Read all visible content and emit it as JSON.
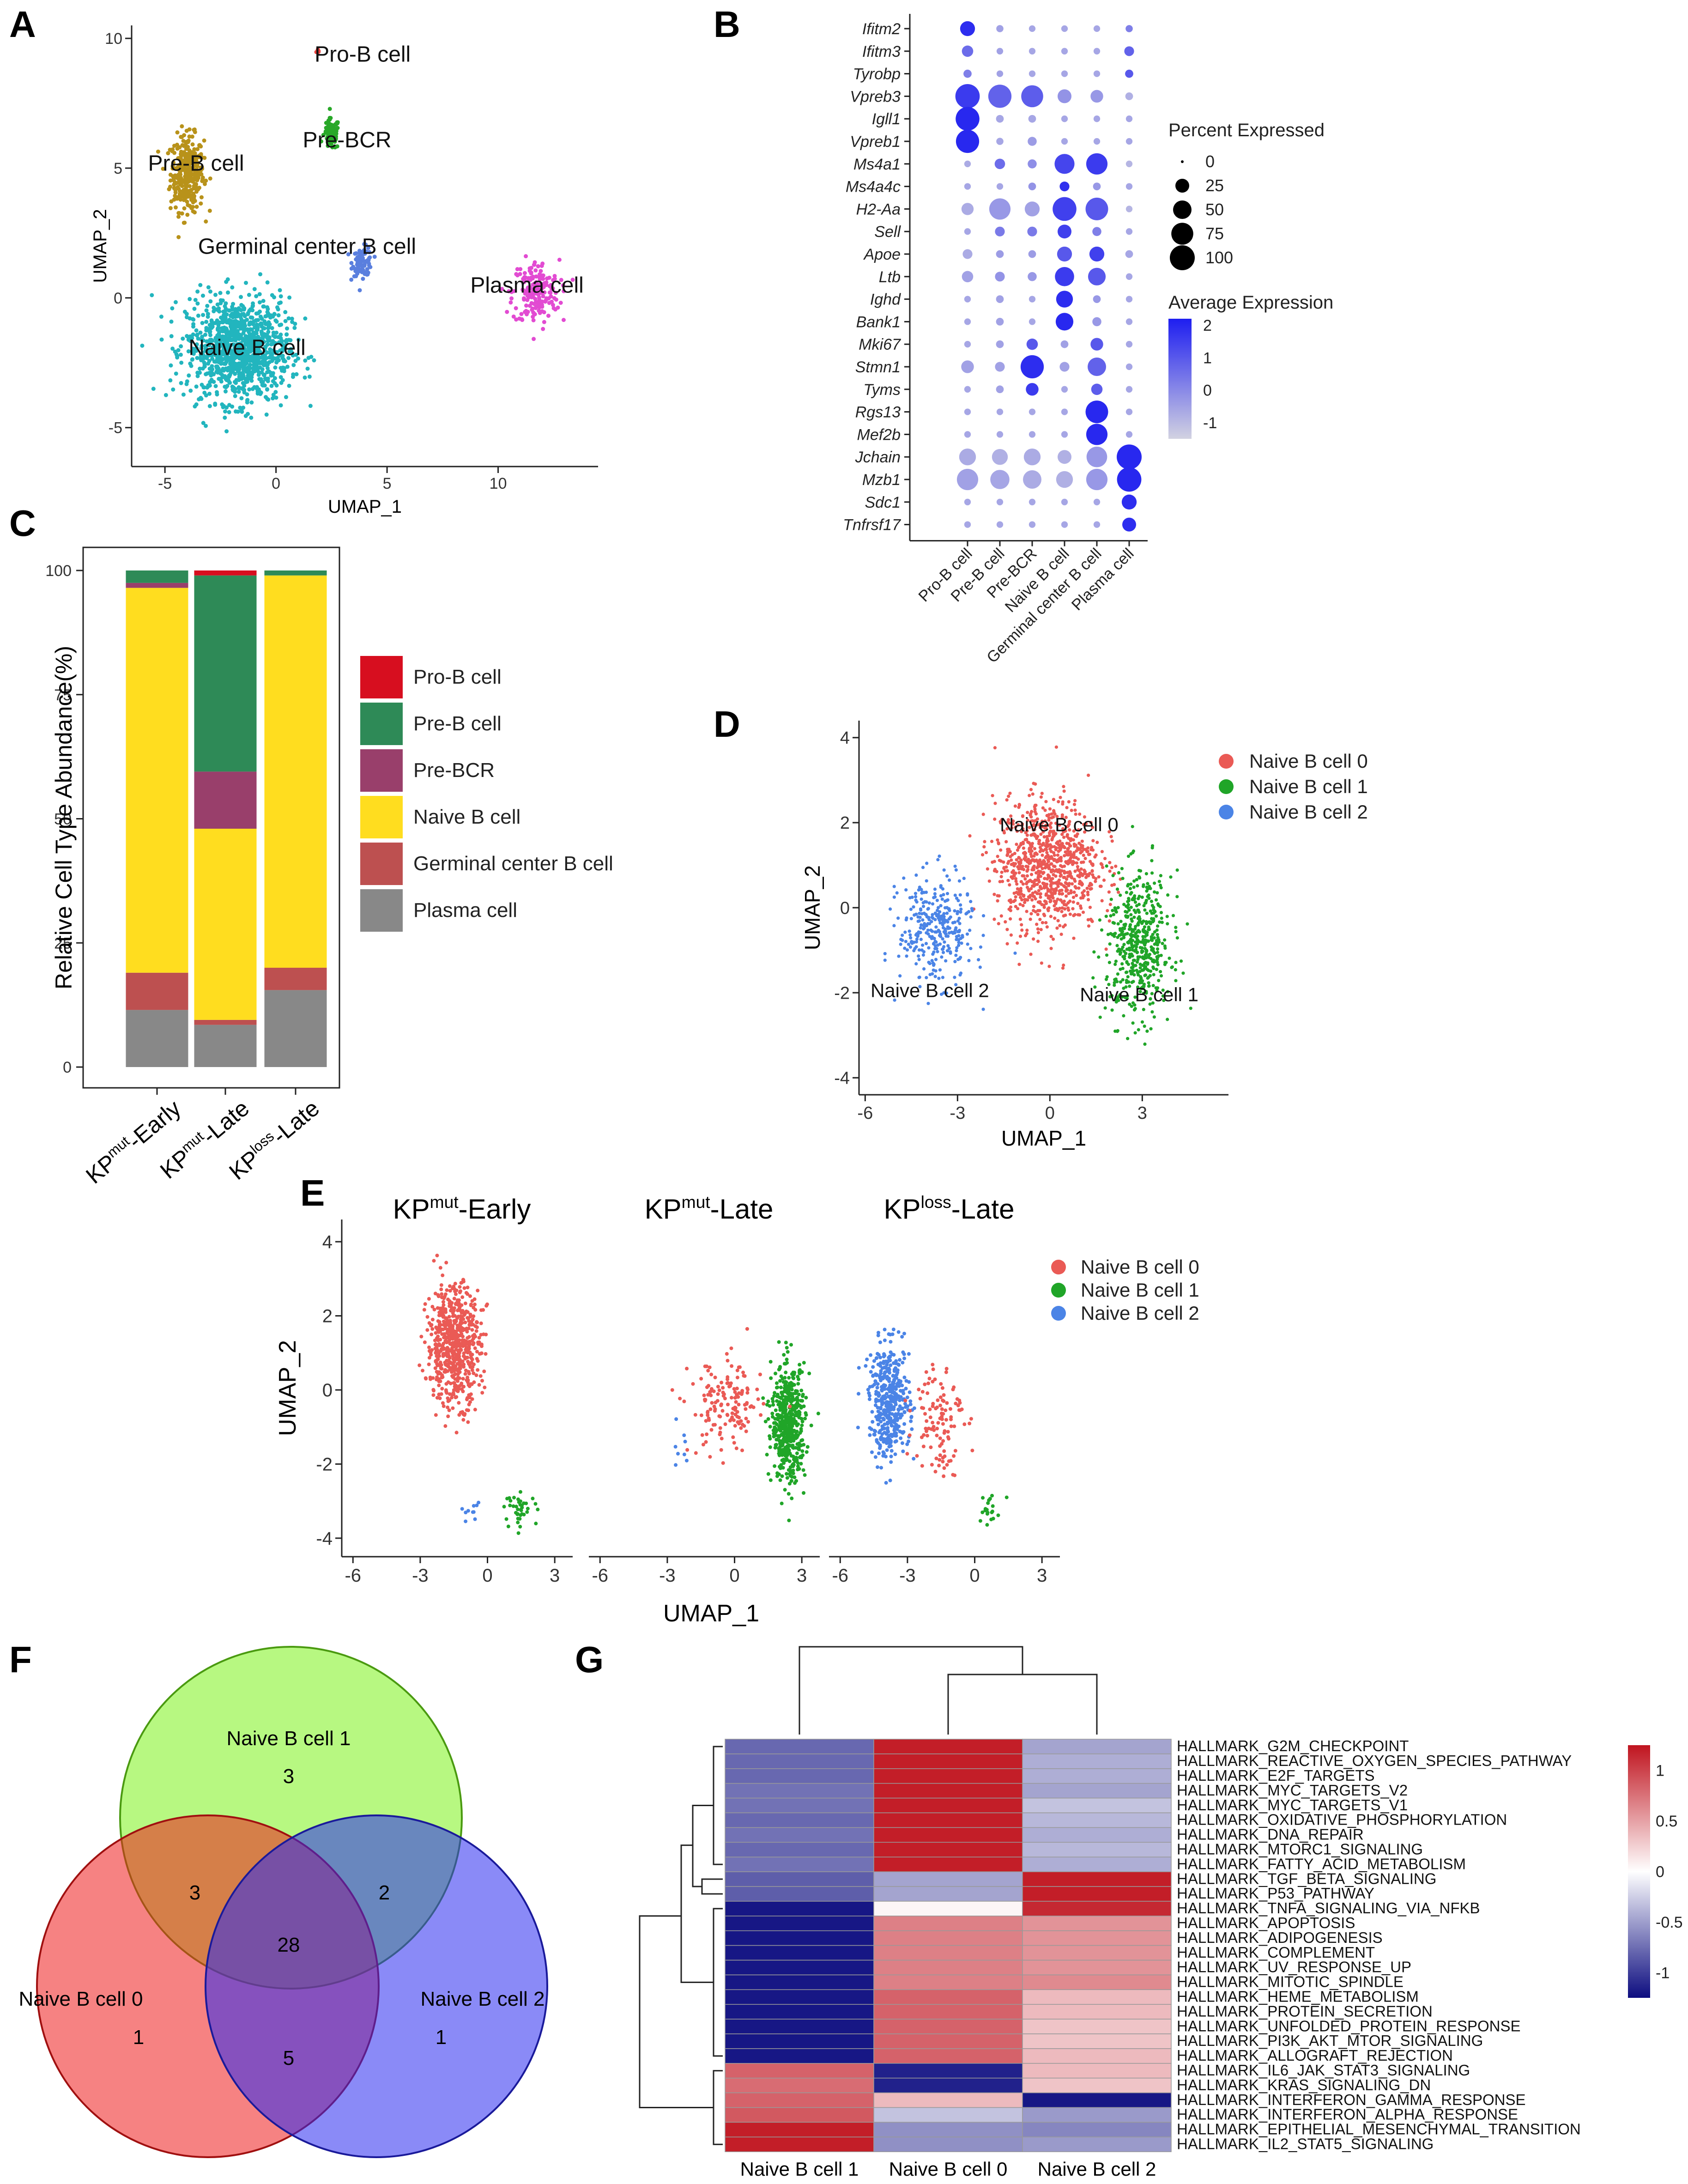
{
  "panel_letters": {
    "A": "A",
    "B": "B",
    "C": "C",
    "D": "D",
    "E": "E",
    "F": "F",
    "G": "G"
  },
  "colors": {
    "pro_b": "#d70e1f",
    "pre_b": "#2e8a57",
    "pre_bcr": "#993f6b",
    "naive": "#ffdd1f",
    "gc": "#bd5050",
    "plasma": "#888888",
    "umapA": {
      "Pro-B cell": "#e8413c",
      "Pre-B cell": "#b8921a",
      "Pre-BCR": "#29a829",
      "Germinal center B cell": "#5a7fde",
      "Plasma cell": "#e24bd2",
      "Naive B cell": "#22b5be"
    },
    "nb0": "#ea5a55",
    "nb1": "#20a528",
    "nb2": "#4b84e6",
    "venn1": "#7cf21a",
    "venn0": "#ee1c1c",
    "venn2": "#2a2af0",
    "heat_low": "#0d0d80",
    "heat_mid": "#ffffff",
    "heat_high": "#c0141f"
  },
  "chart_data": [
    {
      "panel": "A",
      "type": "scatter",
      "title": "",
      "xlabel": "UMAP_1",
      "ylabel": "UMAP_2",
      "xlim": [
        -6.5,
        14.5
      ],
      "ylim": [
        -6.5,
        10.5
      ],
      "xticks": [
        -5,
        0,
        5,
        10
      ],
      "yticks": [
        -5,
        0,
        5,
        10
      ],
      "tick_labels_x": [
        "-5",
        "0",
        "5",
        "10"
      ],
      "tick_labels_y": [
        "-5",
        "0",
        "5",
        "10"
      ],
      "clusters": [
        {
          "name": "Pro-B cell",
          "label": "Pro-B cell",
          "center": [
            1.9,
            9.5
          ],
          "spread": [
            0.08,
            0.1
          ],
          "n": 6
        },
        {
          "name": "Pre-B cell",
          "label": "Pre-B cell",
          "center": [
            -4.0,
            4.8
          ],
          "spread": [
            0.75,
            1.45
          ],
          "n": 340
        },
        {
          "name": "Pre-BCR",
          "label": "Pre-BCR",
          "center": [
            2.5,
            6.3
          ],
          "spread": [
            0.35,
            0.6
          ],
          "n": 90
        },
        {
          "name": "Germinal center B cell",
          "label": "Germinal center B cell",
          "center": [
            3.9,
            1.4
          ],
          "spread": [
            0.45,
            0.55
          ],
          "n": 90
        },
        {
          "name": "Plasma cell",
          "label": "Plasma cell",
          "center": [
            11.7,
            0.2
          ],
          "spread": [
            1.05,
            1.25
          ],
          "n": 190
        },
        {
          "name": "Naive B cell",
          "label": "Naive B cell",
          "center": [
            -1.7,
            -2.0
          ],
          "spread": [
            2.3,
            2.0
          ],
          "n": 1100
        }
      ],
      "text_labels": [
        "Pro-B cell",
        "Pre-B cell",
        "Pre-BCR",
        "Germinal center B cell",
        "Plasma cell",
        "Naive B cell"
      ]
    },
    {
      "panel": "B",
      "type": "dotplot",
      "title": "",
      "genes": [
        "Ifitm2",
        "Ifitm3",
        "Tyrobp",
        "Vpreb3",
        "Igll1",
        "Vpreb1",
        "Ms4a1",
        "Ms4a4c",
        "H2-Aa",
        "Sell",
        "Apoe",
        "Ltb",
        "Ighd",
        "Bank1",
        "Mki67",
        "Stmn1",
        "Tyms",
        "Rgs13",
        "Mef2b",
        "Jchain",
        "Mzb1",
        "Sdc1",
        "Tnfrsf17"
      ],
      "cell_types": [
        "Pro-B cell",
        "Pre-B cell",
        "Pre-BCR",
        "Naive B cell",
        "Germinal center B cell",
        "Plasma cell"
      ],
      "percent_expressed": [
        [
          30,
          4,
          3,
          3,
          3,
          4
        ],
        [
          15,
          3,
          3,
          3,
          3,
          10
        ],
        [
          6,
          3,
          3,
          3,
          3,
          6
        ],
        [
          95,
          85,
          75,
          25,
          20,
          5
        ],
        [
          90,
          5,
          5,
          3,
          3,
          3
        ],
        [
          85,
          4,
          8,
          3,
          3,
          3
        ],
        [
          3,
          12,
          8,
          60,
          70,
          3
        ],
        [
          3,
          3,
          5,
          10,
          5,
          3
        ],
        [
          18,
          70,
          30,
          90,
          80,
          3
        ],
        [
          3,
          10,
          10,
          25,
          8,
          3
        ],
        [
          10,
          5,
          5,
          30,
          30,
          5
        ],
        [
          15,
          10,
          8,
          55,
          45,
          3
        ],
        [
          3,
          5,
          3,
          40,
          5,
          3
        ],
        [
          3,
          5,
          3,
          45,
          8,
          3
        ],
        [
          3,
          5,
          15,
          5,
          20,
          3
        ],
        [
          20,
          10,
          85,
          10,
          50,
          3
        ],
        [
          3,
          5,
          20,
          3,
          15,
          3
        ],
        [
          3,
          3,
          3,
          3,
          80,
          3
        ],
        [
          3,
          3,
          3,
          3,
          70,
          3
        ],
        [
          40,
          35,
          40,
          25,
          65,
          100
        ],
        [
          70,
          55,
          50,
          40,
          70,
          95
        ],
        [
          3,
          3,
          3,
          3,
          3,
          30
        ],
        [
          3,
          3,
          3,
          3,
          3,
          25
        ]
      ],
      "average_expression": [
        [
          1.9,
          -0.5,
          -0.6,
          -0.6,
          -0.6,
          0.2
        ],
        [
          0.6,
          -0.5,
          -0.6,
          -0.6,
          -0.6,
          0.8
        ],
        [
          0.2,
          -0.5,
          -0.6,
          -0.6,
          -0.6,
          1.0
        ],
        [
          1.6,
          0.8,
          0.9,
          -0.2,
          -0.3,
          -0.8
        ],
        [
          2.0,
          -0.6,
          -0.6,
          -0.6,
          -0.6,
          -0.6
        ],
        [
          2.0,
          -0.6,
          -0.4,
          -0.6,
          -0.6,
          -0.6
        ],
        [
          -0.7,
          0.6,
          -0.1,
          1.4,
          1.6,
          -0.9
        ],
        [
          -0.6,
          -0.6,
          -0.2,
          1.8,
          -0.3,
          -0.6
        ],
        [
          -0.7,
          -0.3,
          -0.5,
          1.5,
          1.0,
          -0.9
        ],
        [
          -0.6,
          0.3,
          0.3,
          1.5,
          0.2,
          -0.6
        ],
        [
          -0.7,
          -0.4,
          -0.4,
          1.0,
          1.5,
          -0.6
        ],
        [
          -0.5,
          -0.2,
          -0.3,
          1.6,
          1.0,
          -0.6
        ],
        [
          -0.6,
          -0.5,
          -0.6,
          1.9,
          -0.3,
          -0.6
        ],
        [
          -0.6,
          -0.5,
          -0.6,
          2.0,
          -0.3,
          -0.6
        ],
        [
          -0.6,
          -0.5,
          1.0,
          -0.5,
          1.0,
          -0.6
        ],
        [
          -0.5,
          -0.5,
          1.9,
          -0.5,
          0.8,
          -0.6
        ],
        [
          -0.6,
          -0.5,
          1.6,
          -0.6,
          0.9,
          -0.6
        ],
        [
          -0.6,
          -0.6,
          -0.6,
          -0.6,
          2.0,
          -0.6
        ],
        [
          -0.6,
          -0.6,
          -0.6,
          -0.6,
          2.0,
          -0.6
        ],
        [
          -0.7,
          -0.8,
          -0.7,
          -0.8,
          -0.3,
          2.0
        ],
        [
          -0.5,
          -0.6,
          -0.7,
          -0.8,
          -0.3,
          2.0
        ],
        [
          -0.6,
          -0.6,
          -0.6,
          -0.6,
          -0.6,
          1.9
        ],
        [
          -0.6,
          -0.6,
          -0.6,
          -0.6,
          -0.6,
          1.9
        ]
      ],
      "size_legend": {
        "title": "Percent Expressed",
        "values": [
          0,
          25,
          50,
          75,
          100
        ],
        "labels": [
          "0",
          "25",
          "50",
          "75",
          "100"
        ]
      },
      "color_legend": {
        "title": "Average Expression",
        "range": [
          -1.5,
          2.2
        ],
        "ticks": [
          2,
          1,
          0,
          -1
        ],
        "labels": [
          "2",
          "1",
          "0",
          "-1"
        ]
      }
    },
    {
      "panel": "C",
      "type": "bar",
      "stacked": true,
      "title": "",
      "xlabel": "",
      "ylabel": "Relative Cell Type Abundance(%)",
      "ylim": [
        0,
        100
      ],
      "yticks": [
        0,
        25,
        50,
        75,
        100
      ],
      "tick_labels_y": [
        "0",
        "25",
        "50",
        "75",
        "100"
      ],
      "categories": [
        {
          "base": "KP",
          "sup": "mut",
          "suffix": "-Early"
        },
        {
          "base": "KP",
          "sup": "mut",
          "suffix": "-Late"
        },
        {
          "base": "KP",
          "sup": "loss",
          "suffix": "-Late"
        }
      ],
      "series": [
        {
          "name": "Plasma cell",
          "values": [
            11.5,
            8.5,
            15.5
          ]
        },
        {
          "name": "Germinal center B cell",
          "values": [
            7.5,
            1.0,
            4.5
          ]
        },
        {
          "name": "Naive B cell",
          "values": [
            77.5,
            38.5,
            79.0
          ]
        },
        {
          "name": "Pre-BCR",
          "values": [
            1.0,
            11.5,
            0.0
          ]
        },
        {
          "name": "Pre-B cell",
          "values": [
            2.5,
            39.5,
            1.0
          ]
        },
        {
          "name": "Pro-B cell",
          "values": [
            0.0,
            1.0,
            0.0
          ]
        }
      ],
      "legend": [
        "Pro-B cell",
        "Pre-B cell",
        "Pre-BCR",
        "Naive B cell",
        "Germinal center B cell",
        "Plasma cell"
      ]
    },
    {
      "panel": "D",
      "type": "scatter",
      "title": "",
      "xlabel": "UMAP_1",
      "ylabel": "UMAP_2",
      "xlim": [
        -6.2,
        5.8
      ],
      "ylim": [
        -4.4,
        4.4
      ],
      "xticks": [
        -6,
        -3,
        0,
        3
      ],
      "yticks": [
        -4,
        -2,
        0,
        2,
        4
      ],
      "tick_labels_x": [
        "-6",
        "-3",
        "0",
        "3"
      ],
      "tick_labels_y": [
        "-4",
        "-2",
        "0",
        "2",
        "4"
      ],
      "clusters": [
        {
          "name": "Naive B cell 0",
          "center": [
            -0.1,
            1.0
          ],
          "spread": [
            1.7,
            1.55
          ],
          "n": 900
        },
        {
          "name": "Naive B cell 1",
          "center": [
            2.9,
            -0.9
          ],
          "spread": [
            1.05,
            1.7
          ],
          "n": 520
        },
        {
          "name": "Naive B cell 2",
          "center": [
            -3.7,
            -0.5
          ],
          "spread": [
            1.2,
            1.25
          ],
          "n": 330
        }
      ],
      "legend": [
        "Naive B cell 0",
        "Naive B cell 1",
        "Naive B cell 2"
      ],
      "text_labels": [
        "Naive B cell 0",
        "Naive B cell 2",
        "Naive B cell 1"
      ]
    },
    {
      "panel": "E",
      "type": "scatter",
      "xlabel": "UMAP_1",
      "ylabel": "UMAP_2",
      "xlim": [
        -6.5,
        3.8
      ],
      "ylim": [
        -4.5,
        4.6
      ],
      "xticks": [
        -6,
        -3,
        0,
        3
      ],
      "yticks": [
        -4,
        -2,
        0,
        2,
        4
      ],
      "tick_labels_x": [
        "-6",
        "-3",
        "0",
        "3"
      ],
      "tick_labels_y": [
        "-4",
        "-2",
        "0",
        "2",
        "4"
      ],
      "facets": [
        {
          "base": "KP",
          "sup": "mut",
          "suffix": "-Early",
          "clusters": [
            {
              "name": "Naive B cell 0",
              "center": [
                -1.5,
                1.2
              ],
              "spread": [
                1.2,
                1.6
              ],
              "n": 650
            },
            {
              "name": "Naive B cell 1",
              "center": [
                1.5,
                -3.2
              ],
              "spread": [
                0.7,
                0.4
              ],
              "n": 40
            },
            {
              "name": "Naive B cell 2",
              "center": [
                -0.8,
                -3.3
              ],
              "spread": [
                0.5,
                0.3
              ],
              "n": 10
            }
          ]
        },
        {
          "base": "KP",
          "sup": "mut",
          "suffix": "-Late",
          "clusters": [
            {
              "name": "Naive B cell 1",
              "center": [
                2.4,
                -0.9
              ],
              "spread": [
                0.75,
                1.55
              ],
              "n": 520
            },
            {
              "name": "Naive B cell 0",
              "center": [
                -0.4,
                -0.5
              ],
              "spread": [
                1.6,
                1.3
              ],
              "n": 150
            },
            {
              "name": "Naive B cell 2",
              "center": [
                -2.3,
                -1.5
              ],
              "spread": [
                0.8,
                0.6
              ],
              "n": 8
            }
          ]
        },
        {
          "base": "KP",
          "sup": "loss",
          "suffix": "-Late",
          "clusters": [
            {
              "name": "Naive B cell 2",
              "center": [
                -3.8,
                -0.3
              ],
              "spread": [
                0.9,
                1.5
              ],
              "n": 420
            },
            {
              "name": "Naive B cell 0",
              "center": [
                -1.6,
                -0.7
              ],
              "spread": [
                1.1,
                1.6
              ],
              "n": 110
            },
            {
              "name": "Naive B cell 1",
              "center": [
                0.6,
                -3.2
              ],
              "spread": [
                0.5,
                0.5
              ],
              "n": 20
            }
          ]
        }
      ],
      "legend": [
        "Naive B cell 0",
        "Naive B cell 1",
        "Naive B cell 2"
      ]
    },
    {
      "panel": "F",
      "type": "venn",
      "sets": [
        "Naive B cell 1",
        "Naive B cell 0",
        "Naive B cell 2"
      ],
      "regions": {
        "only_1": "3",
        "only_0": "1",
        "only_2": "1",
        "1_and_0": "3",
        "1_and_2": "2",
        "0_and_2": "5",
        "all": "28"
      }
    },
    {
      "panel": "G",
      "type": "heatmap",
      "columns": [
        "Naive B cell 1",
        "Naive B cell 0",
        "Naive B cell 2"
      ],
      "rows": [
        "HALLMARK_G2M_CHECKPOINT",
        "HALLMARK_REACTIVE_OXYGEN_SPECIES_PATHWAY",
        "HALLMARK_E2F_TARGETS",
        "HALLMARK_MYC_TARGETS_V2",
        "HALLMARK_MYC_TARGETS_V1",
        "HALLMARK_OXIDATIVE_PHOSPHORYLATION",
        "HALLMARK_DNA_REPAIR",
        "HALLMARK_MTORC1_SIGNALING",
        "HALLMARK_FATTY_ACID_METABOLISM",
        "HALLMARK_TGF_BETA_SIGNALING",
        "HALLMARK_P53_PATHWAY",
        "HALLMARK_TNFA_SIGNALING_VIA_NFKB",
        "HALLMARK_APOPTOSIS",
        "HALLMARK_ADIPOGENESIS",
        "HALLMARK_COMPLEMENT",
        "HALLMARK_UV_RESPONSE_UP",
        "HALLMARK_MITOTIC_SPINDLE",
        "HALLMARK_HEME_METABOLISM",
        "HALLMARK_PROTEIN_SECRETION",
        "HALLMARK_UNFOLDED_PROTEIN_RESPONSE",
        "HALLMARK_PI3K_AKT_MTOR_SIGNALING",
        "HALLMARK_ALLOGRAFT_REJECTION",
        "HALLMARK_IL6_JAK_STAT3_SIGNALING",
        "HALLMARK_KRAS_SIGNALING_DN",
        "HALLMARK_INTERFERON_GAMMA_RESPONSE",
        "HALLMARK_INTERFERON_ALPHA_RESPONSE",
        "HALLMARK_EPITHELIAL_MESENCHYMAL_TRANSITION",
        "HALLMARK_IL2_STAT5_SIGNALING"
      ],
      "values": [
        [
          -0.75,
          1.15,
          -0.45
        ],
        [
          -0.75,
          1.15,
          -0.4
        ],
        [
          -0.75,
          1.15,
          -0.4
        ],
        [
          -0.7,
          1.15,
          -0.45
        ],
        [
          -0.7,
          1.15,
          -0.3
        ],
        [
          -0.75,
          1.15,
          -0.35
        ],
        [
          -0.7,
          1.15,
          -0.4
        ],
        [
          -0.75,
          1.15,
          -0.35
        ],
        [
          -0.7,
          1.15,
          -0.4
        ],
        [
          -0.8,
          -0.45,
          1.15
        ],
        [
          -0.8,
          -0.45,
          1.15
        ],
        [
          -1.15,
          0.05,
          1.1
        ],
        [
          -1.15,
          0.65,
          0.55
        ],
        [
          -1.15,
          0.65,
          0.55
        ],
        [
          -1.15,
          0.65,
          0.55
        ],
        [
          -1.15,
          0.65,
          0.55
        ],
        [
          -1.15,
          0.65,
          0.6
        ],
        [
          -1.15,
          0.8,
          0.35
        ],
        [
          -1.15,
          0.8,
          0.35
        ],
        [
          -1.15,
          0.8,
          0.3
        ],
        [
          -1.15,
          0.8,
          0.3
        ],
        [
          -1.15,
          0.8,
          0.35
        ],
        [
          0.8,
          -1.1,
          0.35
        ],
        [
          0.75,
          -1.1,
          0.3
        ],
        [
          0.8,
          0.35,
          -1.15
        ],
        [
          0.85,
          -0.3,
          -0.5
        ],
        [
          1.15,
          -0.55,
          -0.6
        ],
        [
          1.15,
          -0.55,
          -0.5
        ]
      ],
      "legend": {
        "ticks": [
          1,
          0.5,
          0,
          -0.5,
          -1
        ],
        "labels": [
          "1",
          "0.5",
          "0",
          "-0.5",
          "-1"
        ]
      }
    }
  ]
}
